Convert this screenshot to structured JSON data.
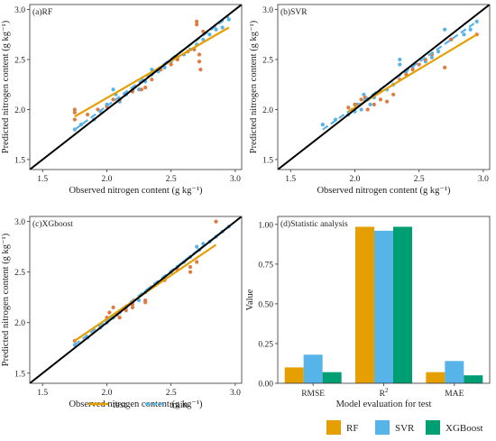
{
  "colors": {
    "rf": "#E69F00",
    "svr": "#56B4E9",
    "xgb": "#009E73",
    "test": "#E07A3F",
    "train": "#56B4E9",
    "identity": "#000000"
  },
  "chart_data": [
    {
      "type": "scatter",
      "id": "rf",
      "title": "(a)RF",
      "xlabel": "Observed nitrogen content (g kg⁻¹)",
      "ylabel": "Predicted nitrogen content (g kg⁻¹)",
      "xlim": [
        1.4,
        3.05
      ],
      "ylim": [
        1.4,
        3.05
      ],
      "xticks": [
        "1.5",
        "2.0",
        "2.5",
        "3.0"
      ],
      "yticks": [
        "1.5",
        "2.0",
        "2.5",
        "3.0"
      ],
      "fit_test": [
        [
          1.75,
          1.93
        ],
        [
          2.95,
          2.82
        ]
      ],
      "fit_train": [
        [
          1.75,
          1.8
        ],
        [
          2.95,
          2.93
        ]
      ],
      "series": [
        {
          "name": "test",
          "points": [
            [
              1.75,
              2.0
            ],
            [
              1.75,
              1.97
            ],
            [
              1.75,
              1.9
            ],
            [
              1.85,
              1.95
            ],
            [
              1.93,
              2.0
            ],
            [
              2.0,
              2.03
            ],
            [
              2.05,
              2.1
            ],
            [
              2.1,
              2.1
            ],
            [
              2.2,
              2.18
            ],
            [
              2.27,
              2.2
            ],
            [
              2.3,
              2.22
            ],
            [
              2.35,
              2.3
            ],
            [
              2.42,
              2.4
            ],
            [
              2.5,
              2.45
            ],
            [
              2.55,
              2.5
            ],
            [
              2.63,
              2.58
            ],
            [
              2.68,
              2.6
            ],
            [
              2.7,
              2.88
            ],
            [
              2.7,
              2.85
            ],
            [
              2.72,
              2.55
            ],
            [
              2.72,
              2.48
            ],
            [
              2.73,
              2.4
            ],
            [
              2.75,
              2.78
            ]
          ]
        },
        {
          "name": "train",
          "points": [
            [
              1.75,
              1.8
            ],
            [
              1.8,
              1.85
            ],
            [
              1.9,
              1.9
            ],
            [
              1.95,
              1.98
            ],
            [
              2.0,
              2.05
            ],
            [
              2.05,
              2.2
            ],
            [
              2.07,
              2.15
            ],
            [
              2.1,
              2.08
            ],
            [
              2.15,
              2.15
            ],
            [
              2.2,
              2.2
            ],
            [
              2.25,
              2.2
            ],
            [
              2.3,
              2.28
            ],
            [
              2.35,
              2.35
            ],
            [
              2.35,
              2.4
            ],
            [
              2.4,
              2.38
            ],
            [
              2.45,
              2.42
            ],
            [
              2.5,
              2.48
            ],
            [
              2.55,
              2.52
            ],
            [
              2.6,
              2.55
            ],
            [
              2.65,
              2.6
            ],
            [
              2.7,
              2.65
            ],
            [
              2.75,
              2.7
            ],
            [
              2.8,
              2.75
            ],
            [
              2.85,
              2.8
            ],
            [
              2.9,
              2.82
            ],
            [
              2.95,
              2.9
            ]
          ]
        }
      ]
    },
    {
      "type": "scatter",
      "id": "svr",
      "title": "(b)SVR",
      "xlabel": "Observed nitrogen content (g kg⁻¹)",
      "ylabel": "Predicted nitrogen content (g kg⁻¹)",
      "xlim": [
        1.4,
        3.05
      ],
      "ylim": [
        1.4,
        3.05
      ],
      "xticks": [
        "1.5",
        "2.0",
        "2.5",
        "3.0"
      ],
      "yticks": [
        "1.5",
        "2.0",
        "2.5",
        "3.0"
      ],
      "fit_test": [
        [
          1.95,
          1.98
        ],
        [
          2.95,
          2.75
        ]
      ],
      "fit_train": [
        [
          1.75,
          1.8
        ],
        [
          2.95,
          2.88
        ]
      ],
      "series": [
        {
          "name": "test",
          "points": [
            [
              1.95,
              2.02
            ],
            [
              2.0,
              2.05
            ],
            [
              2.05,
              2.1
            ],
            [
              2.08,
              2.12
            ],
            [
              2.1,
              2.0
            ],
            [
              2.15,
              2.05
            ],
            [
              2.2,
              2.1
            ],
            [
              2.25,
              2.08
            ],
            [
              2.3,
              2.15
            ],
            [
              2.35,
              2.3
            ],
            [
              2.4,
              2.35
            ],
            [
              2.45,
              2.4
            ],
            [
              2.5,
              2.45
            ],
            [
              2.55,
              2.5
            ],
            [
              2.6,
              2.55
            ],
            [
              2.7,
              2.42
            ],
            [
              2.75,
              2.7
            ],
            [
              2.95,
              2.75
            ]
          ]
        },
        {
          "name": "train",
          "points": [
            [
              1.75,
              1.85
            ],
            [
              1.85,
              1.9
            ],
            [
              1.95,
              1.95
            ],
            [
              2.0,
              1.98
            ],
            [
              2.02,
              2.05
            ],
            [
              2.05,
              2.0
            ],
            [
              2.07,
              2.15
            ],
            [
              2.1,
              2.1
            ],
            [
              2.12,
              2.05
            ],
            [
              2.15,
              2.12
            ],
            [
              2.2,
              2.18
            ],
            [
              2.25,
              2.2
            ],
            [
              2.3,
              2.25
            ],
            [
              2.35,
              2.5
            ],
            [
              2.35,
              2.45
            ],
            [
              2.4,
              2.38
            ],
            [
              2.45,
              2.42
            ],
            [
              2.5,
              2.45
            ],
            [
              2.55,
              2.48
            ],
            [
              2.6,
              2.52
            ],
            [
              2.65,
              2.58
            ],
            [
              2.7,
              2.8
            ],
            [
              2.75,
              2.7
            ],
            [
              2.85,
              2.75
            ],
            [
              2.9,
              2.8
            ],
            [
              2.95,
              2.88
            ]
          ]
        }
      ]
    },
    {
      "type": "scatter",
      "id": "xgb",
      "title": "(c)XGboost",
      "xlabel": "Observed nitrogen content (g kg⁻¹)",
      "ylabel": "Predicted nitrogen content (g kg⁻¹)",
      "xlim": [
        1.4,
        3.05
      ],
      "ylim": [
        1.4,
        3.05
      ],
      "xticks": [
        "1.5",
        "2.0",
        "2.5",
        "3.0"
      ],
      "yticks": [
        "1.5",
        "2.0",
        "2.5",
        "3.0"
      ],
      "fit_test": [
        [
          1.75,
          1.82
        ],
        [
          2.85,
          2.77
        ]
      ],
      "fit_train": [
        [
          1.75,
          1.78
        ],
        [
          2.95,
          2.95
        ]
      ],
      "series": [
        {
          "name": "test",
          "points": [
            [
              1.75,
              1.82
            ],
            [
              2.0,
              2.05
            ],
            [
              2.02,
              2.1
            ],
            [
              2.05,
              2.15
            ],
            [
              2.08,
              2.08
            ],
            [
              2.1,
              2.05
            ],
            [
              2.15,
              2.12
            ],
            [
              2.2,
              2.18
            ],
            [
              2.2,
              2.15
            ],
            [
              2.3,
              2.22
            ],
            [
              2.3,
              2.2
            ],
            [
              2.35,
              2.35
            ],
            [
              2.45,
              2.42
            ],
            [
              2.55,
              2.52
            ],
            [
              2.65,
              2.55
            ],
            [
              2.65,
              2.5
            ],
            [
              2.7,
              2.6
            ],
            [
              2.85,
              3.0
            ]
          ]
        },
        {
          "name": "train",
          "points": [
            [
              1.75,
              1.78
            ],
            [
              1.85,
              1.85
            ],
            [
              1.95,
              1.95
            ],
            [
              2.0,
              2.0
            ],
            [
              2.05,
              2.05
            ],
            [
              2.1,
              2.1
            ],
            [
              2.15,
              2.15
            ],
            [
              2.2,
              2.2
            ],
            [
              2.25,
              2.22
            ],
            [
              2.3,
              2.3
            ],
            [
              2.35,
              2.35
            ],
            [
              2.4,
              2.4
            ],
            [
              2.45,
              2.45
            ],
            [
              2.5,
              2.5
            ],
            [
              2.55,
              2.55
            ],
            [
              2.6,
              2.6
            ],
            [
              2.65,
              2.65
            ],
            [
              2.7,
              2.75
            ],
            [
              2.72,
              2.72
            ],
            [
              2.75,
              2.78
            ],
            [
              2.8,
              2.8
            ],
            [
              2.85,
              2.85
            ],
            [
              2.9,
              2.9
            ],
            [
              2.95,
              2.95
            ]
          ]
        }
      ]
    },
    {
      "type": "bar",
      "id": "stats",
      "title": "(d)Statistic analysis",
      "xlabel": "Model evaluation for test",
      "ylabel": "Value",
      "categories": [
        "RMSE",
        "R2",
        "MAE"
      ],
      "ylim": [
        0,
        1.05
      ],
      "yticks": [
        "0.00",
        "0.25",
        "0.50",
        "0.75",
        "1.00"
      ],
      "series": [
        {
          "name": "RF",
          "values": [
            0.1,
            0.985,
            0.07
          ]
        },
        {
          "name": "SVR",
          "values": [
            0.18,
            0.96,
            0.14
          ]
        },
        {
          "name": "XGBoost",
          "values": [
            0.07,
            0.985,
            0.05
          ]
        }
      ]
    }
  ],
  "legend_scatter": [
    {
      "label": "test",
      "color": "#E69F00",
      "dashed": false
    },
    {
      "label": "train",
      "color": "#56B4E9",
      "dashed": true
    }
  ],
  "legend_bar": [
    {
      "label": "RF",
      "color": "#E69F00"
    },
    {
      "label": "SVR",
      "color": "#56B4E9"
    },
    {
      "label": "XGBoost",
      "color": "#009E73"
    }
  ]
}
